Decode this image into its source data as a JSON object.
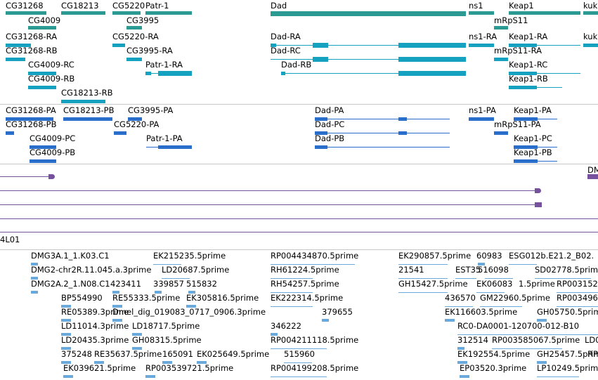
{
  "colors": {
    "gene": "#2b9a92",
    "transcript_a": "#14a2c0",
    "transcript_b": "#2a6ecc",
    "alignment": "#76529e",
    "est": "#6aa9da",
    "separator": "#c8c8c8"
  },
  "genes": {
    "labels": [
      "CG31268",
      "CG18213",
      "CG5220",
      "Patr-1",
      "Dad",
      "ns1",
      "Keap1",
      "kuk",
      "CG4009",
      "CG3995",
      "mRpS11"
    ]
  },
  "transcripts_a": {
    "labels": [
      "CG31268-RA",
      "CG5220-RA",
      "Dad-RA",
      "ns1-RA",
      "Keap1-RA",
      "kuk",
      "CG31268-RB",
      "CG3995-RA",
      "Dad-RC",
      "mRpS11-RA",
      "CG4009-RC",
      "Patr-1-RA",
      "Dad-RB",
      "Keap1-RC",
      "CG4009-RB",
      "Keap1-RB",
      "CG18213-RB"
    ]
  },
  "transcripts_b": {
    "labels": [
      "CG31268-PA",
      "CG18213-PB",
      "CG3995-PA",
      "Dad-PA",
      "ns1-PA",
      "Keap1-PA",
      "CG31268-PB",
      "CG5220-PA",
      "Dad-PC",
      "mRpS11-PA",
      "CG4009-PC",
      "Patr-1-PA",
      "Dad-PB",
      "Keap1-PC",
      "CG4009-PB",
      "Keap1-PB"
    ]
  },
  "alignment": {
    "labels": [
      "DM",
      "4L01"
    ]
  },
  "est": {
    "labels": [
      "DMG3A.1_1.K03.C1",
      "EK215235.5prime",
      "RP004434870.5prime",
      "EK290857.5prime",
      "60983",
      "ESG012b.E21.2_B02.",
      "DMG2-chr2R.11.045.a.3prime",
      "LD20687.5prime",
      "RH61224.5prime",
      "21541",
      "EST35",
      "516098",
      "SD02778.5prime",
      "DMG2A.2_1.N08.C1",
      "423411",
      "339857",
      "515832",
      "RH54257.5prime",
      "GH15427.5prime",
      "EK06083",
      "1.5prime",
      "RP003152",
      "BP554990",
      "RE55333.5prime",
      "EK305816.5prime",
      "EK222314.5prime",
      "436570",
      "GM22960.5prime",
      "RP003496",
      "RE05389.3prime",
      "Dmel_dig_019083_0717_0906.3prime",
      "379655",
      "EK116603.5prime",
      "GH05750.5prime",
      "LD11014.3prime",
      "LD18717.5prime",
      "346222",
      "RC0-DA0001-120700-012-B10",
      "LD20435.3prime",
      "GH08315.5prime",
      "RP004211118.5prime",
      "312514",
      "RP003585067.5prime",
      "LD0",
      "375248",
      "RE35637.5prime",
      "165091",
      "EK025649.5prime",
      "515960",
      "EK192554.5prime",
      "GH25457.5prime",
      "RP",
      "EK039621.5prime",
      "RP003539721.5prime",
      "RP004199208.5prime",
      "EP03520.3prime",
      "LP10249.5prime"
    ]
  }
}
